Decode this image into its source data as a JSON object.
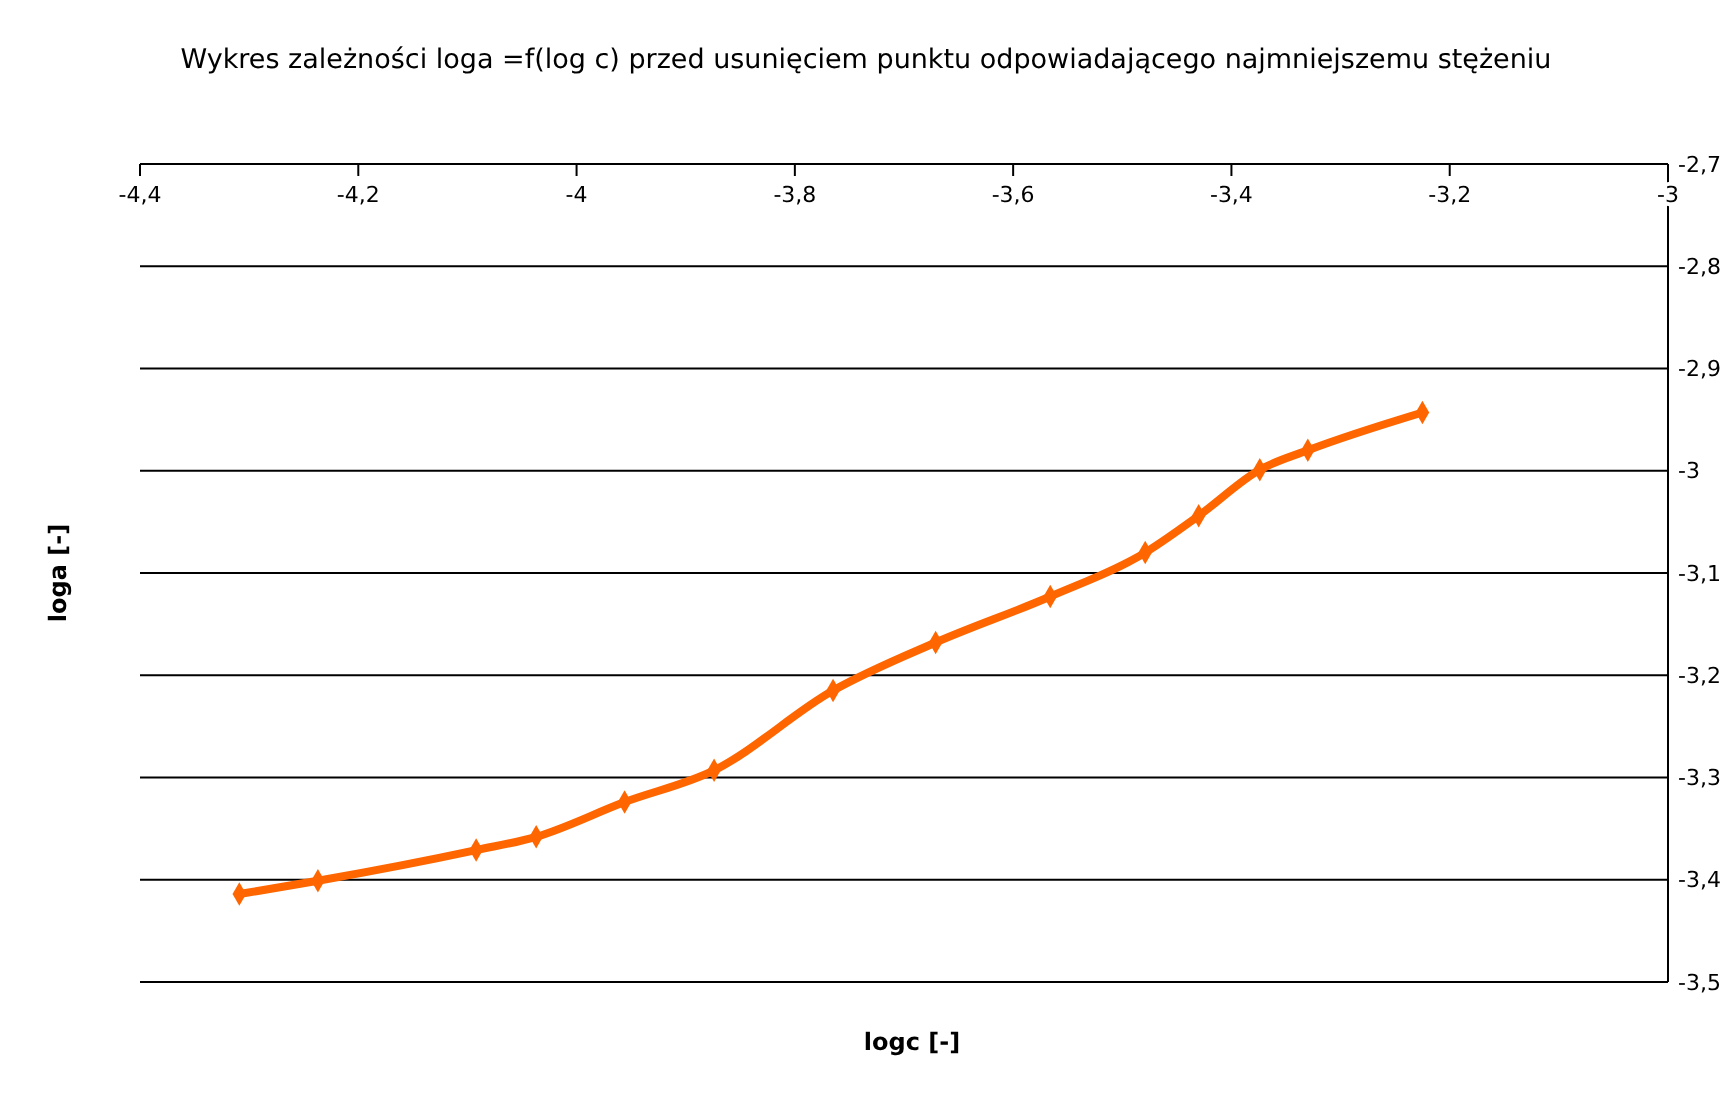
{
  "chart_data": {
    "type": "line",
    "title": "Wykres zależności loga =f(log c) przed usunięciem punktu odpowiadającego najmniejszemu stężeniu",
    "xlabel": "logc [-]",
    "ylabel": "loga [-]",
    "x": [
      -4.309,
      -4.237,
      -4.092,
      -4.037,
      -3.956,
      -3.874,
      -3.765,
      -3.671,
      -3.566,
      -3.479,
      -3.43,
      -3.374,
      -3.33,
      -3.225
    ],
    "series": [
      {
        "color": "#ff6600",
        "values": [
          -3.414,
          -3.401,
          -3.371,
          -3.358,
          -3.324,
          -3.293,
          -3.215,
          -3.168,
          -3.123,
          -3.08,
          -3.044,
          -2.999,
          -2.98,
          -2.943
        ]
      }
    ],
    "xlim": [
      -4.4,
      -3
    ],
    "xticks": [
      {
        "value": -4.4,
        "label": "-4,4"
      },
      {
        "value": -4.2,
        "label": "-4,2"
      },
      -4,
      {
        "value": -3.8,
        "label": "-3,8"
      },
      {
        "value": -3.6,
        "label": "-3,6"
      },
      {
        "value": -3.4,
        "label": "-3,4"
      },
      {
        "value": -3.2,
        "label": "-3,2"
      },
      -3
    ],
    "ylim": [
      -3.5,
      -2.7
    ],
    "yticks": [
      {
        "value": -2.7,
        "label": "-2,7"
      },
      {
        "value": -2.8,
        "label": "-2,8"
      },
      {
        "value": -2.9,
        "label": "-2,9"
      },
      -3,
      {
        "value": -3.1,
        "label": "-3,1"
      },
      {
        "value": -3.2,
        "label": "-3,2"
      },
      {
        "value": -3.3,
        "label": "-3,3"
      },
      {
        "value": -3.4,
        "label": "-3,4"
      },
      {
        "value": -3.5,
        "label": "-3,5"
      }
    ],
    "grid": "y",
    "marker": "diamond",
    "line_style": "solid"
  }
}
